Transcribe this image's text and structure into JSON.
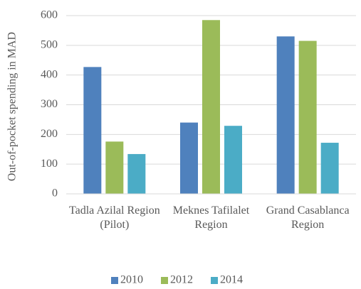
{
  "chart_data": {
    "type": "bar",
    "y_label": "Out-of-pocket spending in MAD",
    "categories": [
      "Tadla Azilal Region (Pilot)",
      "Meknes Tafilalet Region",
      "Grand Casablanca Region"
    ],
    "series": [
      {
        "name": "2010",
        "color": "#4f81bd",
        "values": [
          427,
          240,
          530
        ]
      },
      {
        "name": "2012",
        "color": "#9bbb59",
        "values": [
          176,
          585,
          515
        ]
      },
      {
        "name": "2014",
        "color": "#4bacc6",
        "values": [
          134,
          229,
          172
        ]
      }
    ],
    "ylim": [
      0,
      600
    ],
    "yticks": [
      0,
      100,
      200,
      300,
      400,
      500,
      600
    ],
    "grid": true,
    "legend": "bottom"
  }
}
